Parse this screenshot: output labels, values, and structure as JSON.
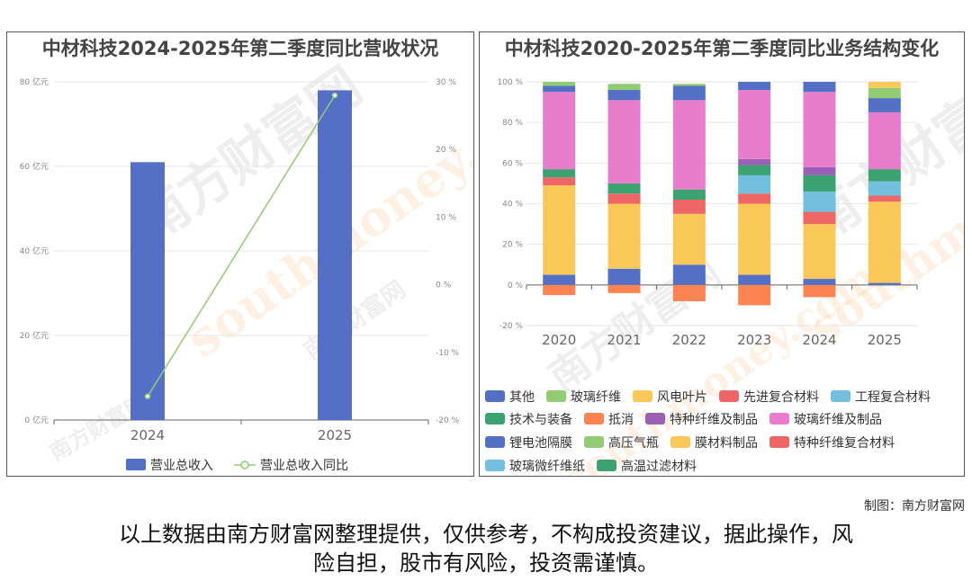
{
  "watermark": {
    "cn": "南方财富网",
    "en": "southmoney.com",
    "cn_short": "南方财富"
  },
  "colors": {
    "bar_blue": "#5470c6",
    "line_green": "#91cc75",
    "grid": "#e6e6e6",
    "axis": "#666666"
  },
  "credit": "制图：南方财富网",
  "disclaimer": {
    "line1": "以上数据由南方财富网整理提供，仅供参考，不构成投资建议，据此操作，风",
    "line2": "险自担，股市有风险，投资需谨慎。"
  },
  "chart_data": [
    {
      "type": "bar",
      "title": "中材科技2024-2025年第二季度同比营收状况",
      "categories": [
        "2024",
        "2025"
      ],
      "series": [
        {
          "name": "营业总收入",
          "type": "bar",
          "axis": "left",
          "values": [
            61,
            78
          ],
          "color": "#5470c6"
        },
        {
          "name": "营业总收入同比",
          "type": "line",
          "axis": "right",
          "values": [
            -16.5,
            28
          ],
          "color": "#91cc75"
        }
      ],
      "left_axis": {
        "min": 0,
        "max": 80,
        "ticks": [
          0,
          20,
          40,
          60,
          80
        ],
        "unit": "亿元"
      },
      "right_axis": {
        "min": -20,
        "max": 30,
        "ticks": [
          -20,
          -10,
          0,
          10,
          20,
          30
        ],
        "unit": "%"
      },
      "legend_position": "bottom",
      "grid": true
    },
    {
      "type": "bar",
      "stacked": true,
      "title": "中材科技2020-2025年第二季度同比业务结构变化",
      "categories": [
        "2020",
        "2021",
        "2022",
        "2023",
        "2024",
        "2025"
      ],
      "y_axis": {
        "min": -20,
        "max": 100,
        "ticks": [
          -20,
          0,
          20,
          40,
          60,
          80,
          100
        ],
        "unit": "%"
      },
      "legend_position": "bottom",
      "grid": true,
      "series": [
        {
          "name": "其他",
          "color": "#5470c6",
          "values": [
            5,
            8,
            10,
            5,
            3,
            1
          ]
        },
        {
          "name": "玻璃纤维",
          "color": "#91cc75",
          "values": [
            0,
            0,
            0,
            0,
            0,
            0
          ]
        },
        {
          "name": "风电叶片",
          "color": "#fac858",
          "values": [
            44,
            32,
            25,
            35,
            27,
            40
          ]
        },
        {
          "name": "先进复合材料",
          "color": "#ee6666",
          "values": [
            4,
            5,
            7,
            5,
            6,
            3
          ]
        },
        {
          "name": "工程复合材料",
          "color": "#73c0de",
          "values": [
            0,
            0,
            0,
            9,
            10,
            7
          ]
        },
        {
          "name": "技术与装备",
          "color": "#3ba272",
          "values": [
            4,
            5,
            5,
            5,
            8,
            6
          ]
        },
        {
          "name": "抵消",
          "color": "#fc8452",
          "values": [
            -5,
            -4,
            -8,
            -10,
            -6,
            0
          ]
        },
        {
          "name": "特种纤维及制品",
          "color": "#9a60b4",
          "values": [
            0,
            0,
            0,
            3,
            4,
            0
          ]
        },
        {
          "name": "玻璃纤维及制品",
          "color": "#ea7ccc",
          "values": [
            38,
            41,
            44,
            34,
            37,
            28
          ]
        },
        {
          "name": "锂电池隔膜",
          "color": "#5470c6",
          "values": [
            3,
            5,
            7,
            4,
            5,
            7
          ]
        },
        {
          "name": "高压气瓶",
          "color": "#91cc75",
          "values": [
            2,
            3,
            1,
            0,
            0,
            5
          ]
        },
        {
          "name": "膜材料制品",
          "color": "#fac858",
          "values": [
            0,
            0,
            0,
            0,
            0,
            3
          ]
        },
        {
          "name": "特种纤维复合材料",
          "color": "#ee6666",
          "values": [
            0,
            0,
            0,
            0,
            0,
            0
          ]
        },
        {
          "name": "玻璃微纤维纸",
          "color": "#73c0de",
          "values": [
            0,
            0,
            0,
            0,
            0,
            0
          ]
        },
        {
          "name": "高温过滤材料",
          "color": "#3ba272",
          "values": [
            0,
            0,
            0,
            0,
            0,
            0
          ]
        }
      ]
    }
  ]
}
